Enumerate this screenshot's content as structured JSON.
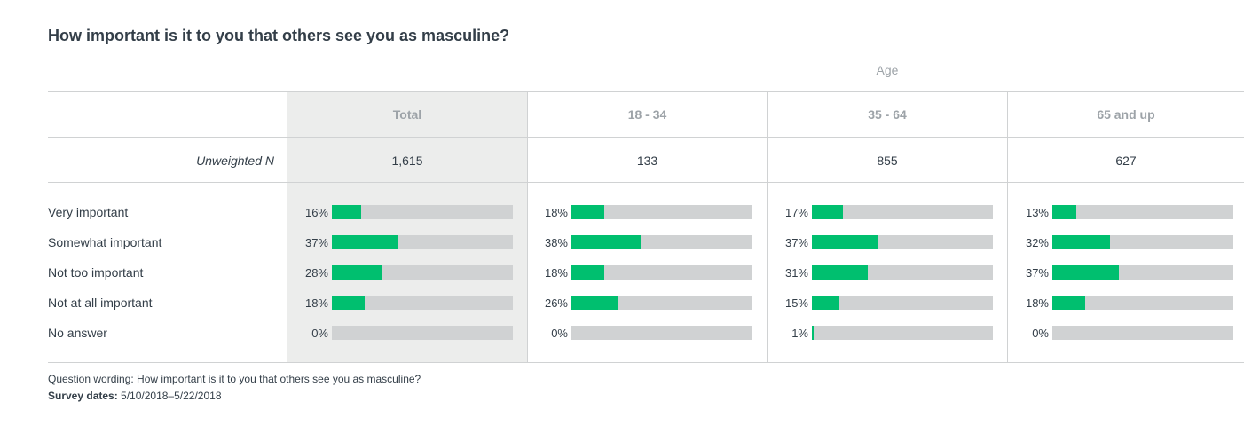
{
  "title": "How important is it to you that others see you as masculine?",
  "group_label": "Age",
  "n_label": "Unweighted N",
  "columns": [
    {
      "label": "Total",
      "n": "1,615"
    },
    {
      "label": "18 - 34",
      "n": "133"
    },
    {
      "label": "35 - 64",
      "n": "855"
    },
    {
      "label": "65 and up",
      "n": "627"
    }
  ],
  "rows": [
    "Very important",
    "Somewhat important",
    "Not too important",
    "Not at all important",
    "No answer"
  ],
  "colors": {
    "bar": "#00bf6f",
    "track": "#d0d2d3",
    "total_bg": "#ecedec"
  },
  "chart_data": {
    "type": "bar",
    "categories": [
      "Very important",
      "Somewhat important",
      "Not too important",
      "Not at all important",
      "No answer"
    ],
    "series": [
      {
        "name": "Total",
        "values": [
          16,
          37,
          28,
          18,
          0
        ]
      },
      {
        "name": "18 - 34",
        "values": [
          18,
          38,
          18,
          26,
          0
        ]
      },
      {
        "name": "35 - 64",
        "values": [
          17,
          37,
          31,
          15,
          1
        ]
      },
      {
        "name": "65 and up",
        "values": [
          13,
          32,
          37,
          18,
          0
        ]
      }
    ],
    "value_format": "{v}%",
    "ylim": [
      0,
      100
    ]
  },
  "footer": {
    "wording": "Question wording: How important is it to you that others see you as masculine?",
    "dates_label": "Survey dates:",
    "dates_value": "5/10/2018–5/22/2018"
  }
}
